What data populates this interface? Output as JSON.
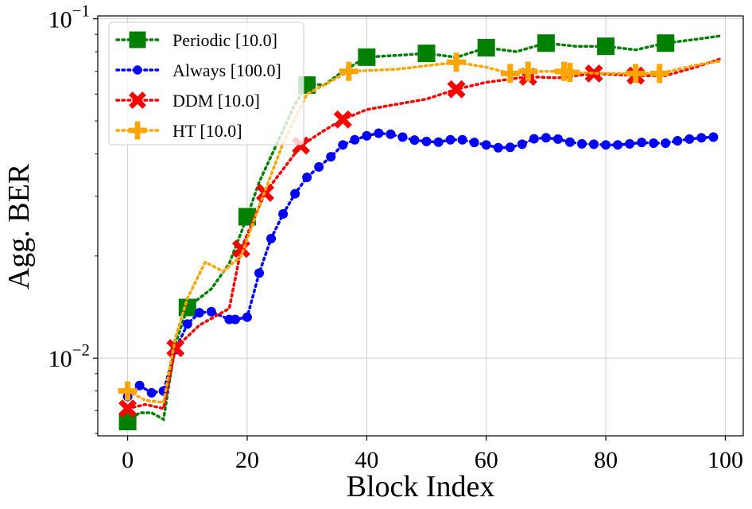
{
  "chart_data": {
    "type": "line",
    "title": "",
    "xlabel": "Block Index",
    "ylabel": "Agg. BER",
    "xlim": [
      -5,
      103
    ],
    "ylim": [
      0.0059,
      0.102
    ],
    "yscale": "log",
    "grid": true,
    "legend_position": "top-left",
    "x_ticks": [
      {
        "value": 0,
        "label": "0"
      },
      {
        "value": 20,
        "label": "20"
      },
      {
        "value": 40,
        "label": "40"
      },
      {
        "value": 60,
        "label": "60"
      },
      {
        "value": 80,
        "label": "80"
      },
      {
        "value": 100,
        "label": "100"
      }
    ],
    "y_ticks": [
      {
        "value": 0.01,
        "base": "10",
        "exp": "−2"
      },
      {
        "value": 0.1,
        "base": "10",
        "exp": "−1"
      }
    ],
    "series": [
      {
        "name": "Periodic [10.0]",
        "color": "#008000",
        "marker": "square",
        "markers": [
          {
            "x": 0,
            "y": 0.0065
          },
          {
            "x": 10,
            "y": 0.0141
          },
          {
            "x": 20,
            "y": 0.0261
          },
          {
            "x": 30,
            "y": 0.0638
          },
          {
            "x": 40,
            "y": 0.0771
          },
          {
            "x": 50,
            "y": 0.0791
          },
          {
            "x": 60,
            "y": 0.0822
          },
          {
            "x": 70,
            "y": 0.0848
          },
          {
            "x": 80,
            "y": 0.083
          },
          {
            "x": 90,
            "y": 0.0848
          }
        ],
        "line": [
          [
            0,
            0.0065
          ],
          [
            2,
            0.0069
          ],
          [
            4,
            0.0069
          ],
          [
            6,
            0.0066
          ],
          [
            8,
            0.011
          ],
          [
            10,
            0.0141
          ],
          [
            14,
            0.016
          ],
          [
            17,
            0.019
          ],
          [
            20,
            0.0261
          ],
          [
            22,
            0.033
          ],
          [
            25,
            0.043
          ],
          [
            28,
            0.056
          ],
          [
            30,
            0.0638
          ],
          [
            33,
            0.064
          ],
          [
            36,
            0.07
          ],
          [
            40,
            0.0771
          ],
          [
            45,
            0.078
          ],
          [
            50,
            0.0791
          ],
          [
            55,
            0.077
          ],
          [
            60,
            0.0822
          ],
          [
            65,
            0.08
          ],
          [
            70,
            0.0848
          ],
          [
            75,
            0.083
          ],
          [
            80,
            0.083
          ],
          [
            85,
            0.081
          ],
          [
            90,
            0.0848
          ],
          [
            95,
            0.087
          ],
          [
            99,
            0.089
          ]
        ]
      },
      {
        "name": "Always [100.0]",
        "color": "#0000ff",
        "marker": "circle",
        "markers": [
          {
            "x": 0,
            "y": 0.0077
          },
          {
            "x": 2,
            "y": 0.0083
          },
          {
            "x": 4,
            "y": 0.0079
          },
          {
            "x": 6,
            "y": 0.008
          },
          {
            "x": 8,
            "y": 0.0106
          },
          {
            "x": 10,
            "y": 0.0126
          },
          {
            "x": 12,
            "y": 0.0136
          },
          {
            "x": 14,
            "y": 0.0137
          },
          {
            "x": 17,
            "y": 0.013
          },
          {
            "x": 18,
            "y": 0.013
          },
          {
            "x": 20,
            "y": 0.0132
          },
          {
            "x": 22,
            "y": 0.0178
          },
          {
            "x": 24,
            "y": 0.0225
          },
          {
            "x": 26,
            "y": 0.0266
          },
          {
            "x": 28,
            "y": 0.0305
          },
          {
            "x": 30,
            "y": 0.0341
          },
          {
            "x": 32,
            "y": 0.0366
          },
          {
            "x": 34,
            "y": 0.0392
          },
          {
            "x": 36,
            "y": 0.0425
          },
          {
            "x": 38,
            "y": 0.044
          },
          {
            "x": 40,
            "y": 0.0452
          },
          {
            "x": 42,
            "y": 0.046
          },
          {
            "x": 44,
            "y": 0.0457
          },
          {
            "x": 46,
            "y": 0.0448
          },
          {
            "x": 48,
            "y": 0.0439
          },
          {
            "x": 50,
            "y": 0.0435
          },
          {
            "x": 52,
            "y": 0.0433
          },
          {
            "x": 54,
            "y": 0.044
          },
          {
            "x": 56,
            "y": 0.044
          },
          {
            "x": 58,
            "y": 0.0432
          },
          {
            "x": 60,
            "y": 0.0425
          },
          {
            "x": 62,
            "y": 0.0417
          },
          {
            "x": 64,
            "y": 0.0418
          },
          {
            "x": 66,
            "y": 0.0427
          },
          {
            "x": 68,
            "y": 0.0443
          },
          {
            "x": 70,
            "y": 0.0446
          },
          {
            "x": 72,
            "y": 0.0442
          },
          {
            "x": 74,
            "y": 0.0433
          },
          {
            "x": 76,
            "y": 0.0428
          },
          {
            "x": 78,
            "y": 0.0427
          },
          {
            "x": 80,
            "y": 0.0425
          },
          {
            "x": 82,
            "y": 0.0425
          },
          {
            "x": 84,
            "y": 0.0428
          },
          {
            "x": 86,
            "y": 0.0432
          },
          {
            "x": 88,
            "y": 0.043
          },
          {
            "x": 90,
            "y": 0.043
          },
          {
            "x": 92,
            "y": 0.0437
          },
          {
            "x": 94,
            "y": 0.0442
          },
          {
            "x": 96,
            "y": 0.0446
          },
          {
            "x": 98,
            "y": 0.0448
          }
        ]
      },
      {
        "name": "DDM [10.0]",
        "color": "#ff0000",
        "marker": "x",
        "markers": [
          {
            "x": 0,
            "y": 0.0071
          },
          {
            "x": 8,
            "y": 0.0107
          },
          {
            "x": 19,
            "y": 0.021
          },
          {
            "x": 23,
            "y": 0.0307
          },
          {
            "x": 29,
            "y": 0.0423
          },
          {
            "x": 36,
            "y": 0.0505
          },
          {
            "x": 55,
            "y": 0.062
          },
          {
            "x": 67,
            "y": 0.0675
          },
          {
            "x": 78,
            "y": 0.069
          },
          {
            "x": 85,
            "y": 0.068
          }
        ],
        "line": [
          [
            0,
            0.0071
          ],
          [
            3,
            0.0073
          ],
          [
            6,
            0.0071
          ],
          [
            8,
            0.0107
          ],
          [
            12,
            0.0125
          ],
          [
            17,
            0.014
          ],
          [
            19,
            0.021
          ],
          [
            23,
            0.0307
          ],
          [
            26,
            0.036
          ],
          [
            29,
            0.0423
          ],
          [
            33,
            0.047
          ],
          [
            36,
            0.0505
          ],
          [
            40,
            0.054
          ],
          [
            45,
            0.056
          ],
          [
            50,
            0.058
          ],
          [
            55,
            0.062
          ],
          [
            60,
            0.065
          ],
          [
            67,
            0.0675
          ],
          [
            72,
            0.067
          ],
          [
            78,
            0.069
          ],
          [
            85,
            0.068
          ],
          [
            90,
            0.068
          ],
          [
            95,
            0.072
          ],
          [
            99,
            0.076
          ]
        ]
      },
      {
        "name": "HT [10.0]",
        "color": "#ffa500",
        "marker": "plus",
        "markers": [
          {
            "x": 0,
            "y": 0.008
          },
          {
            "x": 37,
            "y": 0.07
          },
          {
            "x": 55,
            "y": 0.0745
          },
          {
            "x": 64,
            "y": 0.069
          },
          {
            "x": 67,
            "y": 0.07
          },
          {
            "x": 73,
            "y": 0.07
          },
          {
            "x": 74,
            "y": 0.0695
          },
          {
            "x": 85,
            "y": 0.069
          },
          {
            "x": 89,
            "y": 0.069
          }
        ],
        "line": [
          [
            0,
            0.008
          ],
          [
            3,
            0.0075
          ],
          [
            6,
            0.0074
          ],
          [
            8,
            0.0115
          ],
          [
            10,
            0.015
          ],
          [
            13,
            0.0192
          ],
          [
            16,
            0.018
          ],
          [
            19,
            0.02
          ],
          [
            22,
            0.028
          ],
          [
            26,
            0.043
          ],
          [
            30,
            0.06
          ],
          [
            33,
            0.064
          ],
          [
            37,
            0.07
          ],
          [
            45,
            0.071
          ],
          [
            55,
            0.0745
          ],
          [
            60,
            0.072
          ],
          [
            64,
            0.069
          ],
          [
            67,
            0.07
          ],
          [
            73,
            0.07
          ],
          [
            74,
            0.0695
          ],
          [
            80,
            0.069
          ],
          [
            85,
            0.069
          ],
          [
            89,
            0.069
          ],
          [
            95,
            0.073
          ],
          [
            99,
            0.075
          ]
        ]
      }
    ]
  }
}
